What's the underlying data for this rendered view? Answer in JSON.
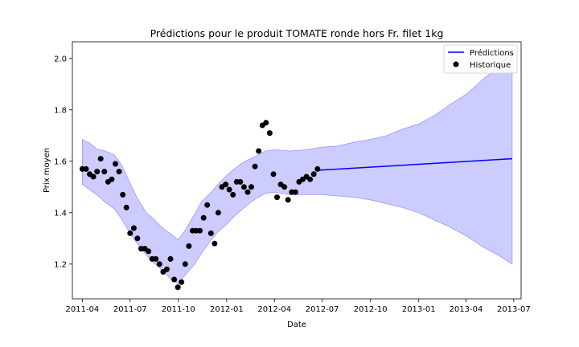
{
  "chart_data": {
    "type": "line",
    "title": "Prédictions pour le produit TOMATE ronde hors Fr. filet 1kg",
    "xlabel": "Date",
    "ylabel": "Prix moyen",
    "x_range": [
      "2011-03-13",
      "2013-07-15"
    ],
    "ylim": [
      1.065,
      2.065
    ],
    "x_ticks": [
      "2011-04",
      "2011-07",
      "2011-10",
      "2012-01",
      "2012-04",
      "2012-07",
      "2012-10",
      "2013-01",
      "2013-04",
      "2013-07"
    ],
    "y_ticks": [
      1.2,
      1.4,
      1.6,
      1.8,
      2.0
    ],
    "grid": false,
    "legend_position": "top-right",
    "colors": {
      "prediction": "#0000ff",
      "band_fill": "#ccccff",
      "band_edge": "#9a9aff",
      "history": "#000000"
    },
    "series": [
      {
        "name": "Historique",
        "kind": "scatter",
        "points": [
          [
            "2011-04-01",
            1.57
          ],
          [
            "2011-04-08",
            1.57
          ],
          [
            "2011-04-15",
            1.55
          ],
          [
            "2011-04-22",
            1.54
          ],
          [
            "2011-04-29",
            1.56
          ],
          [
            "2011-05-06",
            1.61
          ],
          [
            "2011-05-13",
            1.56
          ],
          [
            "2011-05-20",
            1.52
          ],
          [
            "2011-05-27",
            1.53
          ],
          [
            "2011-06-03",
            1.59
          ],
          [
            "2011-06-10",
            1.56
          ],
          [
            "2011-06-17",
            1.47
          ],
          [
            "2011-06-24",
            1.42
          ],
          [
            "2011-07-01",
            1.32
          ],
          [
            "2011-07-08",
            1.34
          ],
          [
            "2011-07-15",
            1.3
          ],
          [
            "2011-07-22",
            1.26
          ],
          [
            "2011-07-29",
            1.26
          ],
          [
            "2011-08-05",
            1.25
          ],
          [
            "2011-08-12",
            1.22
          ],
          [
            "2011-08-19",
            1.22
          ],
          [
            "2011-08-26",
            1.2
          ],
          [
            "2011-09-02",
            1.17
          ],
          [
            "2011-09-09",
            1.18
          ],
          [
            "2011-09-16",
            1.22
          ],
          [
            "2011-09-23",
            1.14
          ],
          [
            "2011-09-30",
            1.11
          ],
          [
            "2011-10-07",
            1.13
          ],
          [
            "2011-10-14",
            1.2
          ],
          [
            "2011-10-21",
            1.27
          ],
          [
            "2011-10-28",
            1.33
          ],
          [
            "2011-11-04",
            1.33
          ],
          [
            "2011-11-11",
            1.33
          ],
          [
            "2011-11-18",
            1.38
          ],
          [
            "2011-11-25",
            1.43
          ],
          [
            "2011-12-02",
            1.32
          ],
          [
            "2011-12-09",
            1.28
          ],
          [
            "2011-12-16",
            1.4
          ],
          [
            "2011-12-23",
            1.5
          ],
          [
            "2011-12-30",
            1.51
          ],
          [
            "2012-01-06",
            1.49
          ],
          [
            "2012-01-13",
            1.47
          ],
          [
            "2012-01-20",
            1.52
          ],
          [
            "2012-01-27",
            1.52
          ],
          [
            "2012-02-03",
            1.5
          ],
          [
            "2012-02-10",
            1.48
          ],
          [
            "2012-02-17",
            1.5
          ],
          [
            "2012-02-24",
            1.58
          ],
          [
            "2012-03-02",
            1.64
          ],
          [
            "2012-03-09",
            1.74
          ],
          [
            "2012-03-16",
            1.75
          ],
          [
            "2012-03-23",
            1.71
          ],
          [
            "2012-03-30",
            1.55
          ],
          [
            "2012-04-06",
            1.46
          ],
          [
            "2012-04-13",
            1.51
          ],
          [
            "2012-04-20",
            1.5
          ],
          [
            "2012-04-27",
            1.45
          ],
          [
            "2012-05-04",
            1.48
          ],
          [
            "2012-05-11",
            1.48
          ],
          [
            "2012-05-18",
            1.52
          ],
          [
            "2012-05-25",
            1.53
          ],
          [
            "2012-06-01",
            1.54
          ],
          [
            "2012-06-08",
            1.53
          ],
          [
            "2012-06-15",
            1.55
          ],
          [
            "2012-06-22",
            1.57
          ]
        ]
      },
      {
        "name": "Prédictions",
        "kind": "line",
        "points": [
          [
            "2012-06-22",
            1.565
          ],
          [
            "2013-06-28",
            1.61
          ]
        ]
      }
    ],
    "interval": {
      "upper": [
        [
          "2011-04-01",
          1.685
        ],
        [
          "2011-04-15",
          1.67
        ],
        [
          "2011-05-01",
          1.645
        ],
        [
          "2011-05-15",
          1.64
        ],
        [
          "2011-06-01",
          1.625
        ],
        [
          "2011-06-15",
          1.585
        ],
        [
          "2011-07-01",
          1.515
        ],
        [
          "2011-07-15",
          1.455
        ],
        [
          "2011-08-01",
          1.4
        ],
        [
          "2011-08-15",
          1.375
        ],
        [
          "2011-09-01",
          1.34
        ],
        [
          "2011-09-15",
          1.32
        ],
        [
          "2011-10-01",
          1.295
        ],
        [
          "2011-10-15",
          1.335
        ],
        [
          "2011-11-01",
          1.395
        ],
        [
          "2011-11-15",
          1.445
        ],
        [
          "2011-12-01",
          1.475
        ],
        [
          "2011-12-15",
          1.51
        ],
        [
          "2012-01-01",
          1.545
        ],
        [
          "2012-01-15",
          1.57
        ],
        [
          "2012-02-01",
          1.595
        ],
        [
          "2012-02-15",
          1.61
        ],
        [
          "2012-03-01",
          1.625
        ],
        [
          "2012-03-15",
          1.64
        ],
        [
          "2012-04-01",
          1.645
        ],
        [
          "2012-05-01",
          1.64
        ],
        [
          "2012-06-01",
          1.645
        ],
        [
          "2012-07-01",
          1.655
        ],
        [
          "2012-08-01",
          1.66
        ],
        [
          "2012-09-01",
          1.675
        ],
        [
          "2012-10-01",
          1.685
        ],
        [
          "2012-11-01",
          1.7
        ],
        [
          "2012-12-01",
          1.725
        ],
        [
          "2013-01-01",
          1.745
        ],
        [
          "2013-02-01",
          1.78
        ],
        [
          "2013-03-01",
          1.82
        ],
        [
          "2013-04-01",
          1.86
        ],
        [
          "2013-05-01",
          1.915
        ],
        [
          "2013-06-01",
          1.965
        ],
        [
          "2013-06-28",
          2.025
        ]
      ],
      "lower": [
        [
          "2011-04-01",
          1.51
        ],
        [
          "2011-04-15",
          1.49
        ],
        [
          "2011-05-01",
          1.465
        ],
        [
          "2011-05-15",
          1.44
        ],
        [
          "2011-06-01",
          1.415
        ],
        [
          "2011-06-15",
          1.375
        ],
        [
          "2011-07-01",
          1.32
        ],
        [
          "2011-07-15",
          1.28
        ],
        [
          "2011-08-01",
          1.235
        ],
        [
          "2011-08-15",
          1.205
        ],
        [
          "2011-09-01",
          1.175
        ],
        [
          "2011-09-15",
          1.145
        ],
        [
          "2011-10-01",
          1.125
        ],
        [
          "2011-10-15",
          1.16
        ],
        [
          "2011-11-01",
          1.2
        ],
        [
          "2011-11-15",
          1.245
        ],
        [
          "2011-12-01",
          1.29
        ],
        [
          "2011-12-15",
          1.325
        ],
        [
          "2012-01-01",
          1.355
        ],
        [
          "2012-01-15",
          1.385
        ],
        [
          "2012-02-01",
          1.415
        ],
        [
          "2012-02-15",
          1.44
        ],
        [
          "2012-03-01",
          1.46
        ],
        [
          "2012-03-15",
          1.475
        ],
        [
          "2012-04-01",
          1.48
        ],
        [
          "2012-05-01",
          1.47
        ],
        [
          "2012-06-01",
          1.47
        ],
        [
          "2012-07-01",
          1.47
        ],
        [
          "2012-08-01",
          1.465
        ],
        [
          "2012-09-01",
          1.46
        ],
        [
          "2012-10-01",
          1.45
        ],
        [
          "2012-11-01",
          1.435
        ],
        [
          "2012-12-01",
          1.42
        ],
        [
          "2013-01-01",
          1.4
        ],
        [
          "2013-02-01",
          1.37
        ],
        [
          "2013-03-01",
          1.345
        ],
        [
          "2013-04-01",
          1.31
        ],
        [
          "2013-05-01",
          1.27
        ],
        [
          "2013-06-01",
          1.235
        ],
        [
          "2013-06-28",
          1.2
        ]
      ]
    }
  }
}
